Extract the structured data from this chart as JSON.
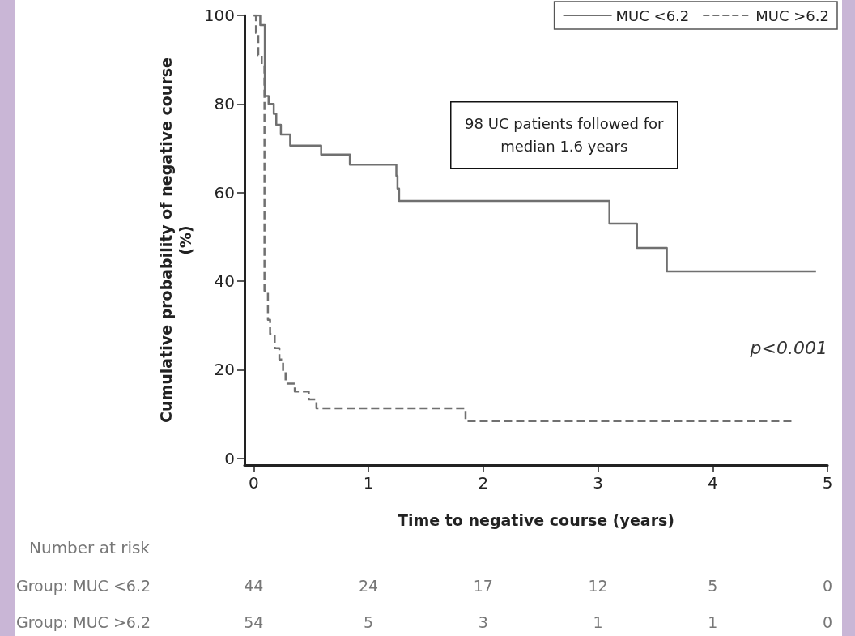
{
  "chart_data": {
    "type": "step",
    "ylabel": "Cumulative probability of negative course\n(%)",
    "xlabel": "Time to negative course (years)",
    "xlim": [
      -0.08,
      5
    ],
    "xticks": [
      0,
      1,
      2,
      3,
      4,
      5
    ],
    "ylim": [
      -1.5,
      100
    ],
    "yticks": [
      0,
      20,
      40,
      60,
      80,
      100
    ],
    "grid": false,
    "legend": "top right",
    "marker": "none",
    "series": [
      {
        "name": "MUC <6.2",
        "color": "#707070",
        "line_style": "solid",
        "x": [
          0,
          0.057,
          0.097,
          0.13,
          0.175,
          0.197,
          0.237,
          0.318,
          0.588,
          0.838,
          1.243,
          1.253,
          1.267,
          3.1,
          3.34,
          3.6,
          4.9
        ],
        "values": [
          100,
          97.8,
          81.8,
          80,
          77.8,
          75.3,
          73.1,
          70.6,
          68.6,
          66.3,
          63.8,
          60.9,
          58.1,
          53,
          47.5,
          42.2,
          42.2
        ]
      },
      {
        "name": "MUC >6.2",
        "color": "#707070",
        "line_style": "dashed",
        "x": [
          0,
          0.02,
          0.04,
          0.07,
          0.094,
          0.124,
          0.143,
          0.183,
          0.224,
          0.256,
          0.278,
          0.358,
          0.48,
          0.547,
          1.846,
          4.7
        ],
        "values": [
          100,
          96,
          91,
          89,
          37.8,
          31.3,
          28.1,
          24.9,
          22.3,
          19.5,
          16.9,
          15.1,
          13.3,
          11.3,
          8.4,
          8.4
        ]
      }
    ],
    "annotations": [
      "p<0.001",
      "98 UC patients followed for\nmedian 1.6 years",
      "Number at risk",
      "Group: MUC <6.2",
      "44",
      "24",
      "17",
      "12",
      "5",
      "0",
      "Group: MUC >6.2",
      "54",
      "5",
      "3",
      "1",
      "1",
      "0"
    ]
  }
}
